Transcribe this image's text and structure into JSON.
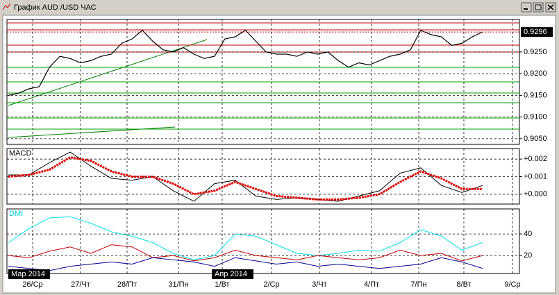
{
  "window": {
    "title": "График AUD /USD  ЧАС"
  },
  "time_axis": {
    "labels": [
      "26/Ср",
      "27/Чт",
      "28/Пт",
      "31/Пн",
      "1/Вт",
      "2/Ср",
      "3/Чт",
      "4/Пт",
      "7/Пн",
      "8/Вт",
      "9/Ср"
    ],
    "markers": [
      "Мар 2014",
      "Апр 2014"
    ]
  },
  "chart_data": [
    {
      "type": "line",
      "color": "#000000",
      "ylim": [
        0.9037,
        0.9325
      ],
      "yticks": [
        {
          "value": 0.925,
          "label": "0.9250"
        },
        {
          "value": 0.92,
          "label": "0.9200"
        },
        {
          "value": 0.915,
          "label": "0.9150"
        },
        {
          "value": 0.91,
          "label": "0.9100"
        },
        {
          "value": 0.905,
          "label": "0.9050"
        }
      ],
      "last_price": 0.9296,
      "values": [
        0.915,
        0.9155,
        0.9165,
        0.917,
        0.9215,
        0.924,
        0.9235,
        0.9225,
        0.923,
        0.924,
        0.9245,
        0.927,
        0.928,
        0.93,
        0.9275,
        0.9255,
        0.925,
        0.926,
        0.9245,
        0.9235,
        0.924,
        0.928,
        0.9285,
        0.93,
        0.9275,
        0.925,
        0.9245,
        0.9245,
        0.924,
        0.925,
        0.9245,
        0.925,
        0.923,
        0.9215,
        0.9225,
        0.922,
        0.923,
        0.924,
        0.9245,
        0.9255,
        0.93,
        0.929,
        0.9285,
        0.9265,
        0.927,
        0.9285,
        0.9296
      ]
    },
    {
      "type": "line",
      "title": "MACD",
      "ylim": [
        -0.00056,
        0.0026
      ],
      "yticks": [
        {
          "value": 0.002,
          "label": "+0.002"
        },
        {
          "value": 0.001,
          "label": "+0.001"
        },
        {
          "value": 0,
          "label": "+0.000"
        }
      ],
      "series": [
        {
          "color": "#000000",
          "values": [
            0.0011,
            0.0011,
            0.0018,
            0.0024,
            0.0016,
            0.0009,
            0.0008,
            0.001,
            0.0002,
            -0.0004,
            0.0006,
            0.0008,
            -0.0001,
            -0.0003,
            -0.0002,
            -0.0003,
            -0.0004,
            -0.0001,
            0.0002,
            0.0012,
            0.0015,
            0.0005,
            0.0001,
            0.0005
          ]
        },
        {
          "color": "#e00000",
          "values": [
            0.001,
            0.0011,
            0.0014,
            0.0021,
            0.0019,
            0.0013,
            0.001,
            0.001,
            0.0006,
            0.0,
            0.0002,
            0.0007,
            0.0003,
            -0.0001,
            -0.0002,
            -0.0003,
            -0.0003,
            -0.0002,
            0.0,
            0.0007,
            0.0013,
            0.0009,
            0.0003,
            0.0003
          ]
        }
      ]
    },
    {
      "type": "line",
      "title": "DMI",
      "ylim": [
        3.3,
        63.3
      ],
      "yticks": [
        40,
        20
      ],
      "series": [
        {
          "color": "#00e0e8",
          "values": [
            32,
            45,
            55,
            56,
            50,
            42,
            38,
            32,
            22,
            16,
            20,
            40,
            38,
            30,
            22,
            20,
            22,
            25,
            24,
            32,
            44,
            38,
            25,
            32
          ]
        },
        {
          "color": "#c00000",
          "values": [
            20,
            18,
            24,
            28,
            22,
            30,
            28,
            18,
            20,
            15,
            18,
            25,
            20,
            18,
            16,
            20,
            18,
            16,
            18,
            25,
            20,
            22,
            15,
            20
          ]
        },
        {
          "color": "#000090",
          "values": [
            10,
            8,
            6,
            10,
            12,
            14,
            12,
            18,
            16,
            14,
            10,
            18,
            15,
            12,
            14,
            10,
            12,
            10,
            8,
            10,
            12,
            18,
            14,
            8
          ]
        }
      ]
    }
  ]
}
